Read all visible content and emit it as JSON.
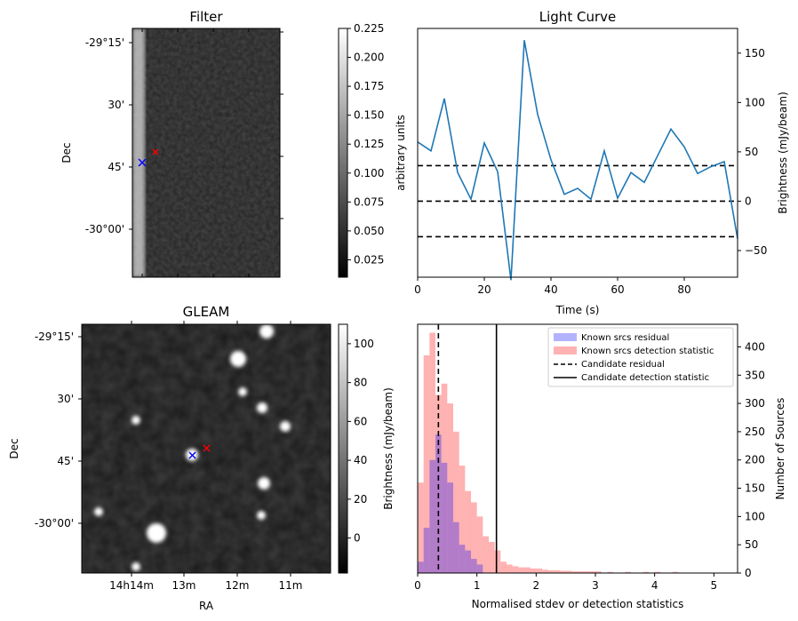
{
  "chart_data": [
    {
      "type": "heatmap",
      "title": "Filter",
      "ylabel": "Dec",
      "y_ticks": [
        "-29°15'",
        "30'",
        "45'",
        "-30°00'"
      ],
      "colorbar": {
        "label": "arbitrary units",
        "range": [
          0.01,
          0.225
        ],
        "ticks": [
          "0.225",
          "0.200",
          "0.175",
          "0.150",
          "0.125",
          "0.100",
          "0.075",
          "0.050",
          "0.025"
        ],
        "colormap": "gray"
      },
      "markers": [
        {
          "symbol": "x",
          "color": "#0000ff"
        },
        {
          "symbol": "x",
          "color": "#ff0000"
        }
      ]
    },
    {
      "type": "line",
      "title": "Light Curve",
      "xlabel": "Time (s)",
      "y2label": "Brightness (mJy/beam)",
      "xlim": [
        0,
        96
      ],
      "ylim": [
        -77,
        175
      ],
      "x_ticks": [
        "0",
        "20",
        "40",
        "60",
        "80"
      ],
      "y_ticks": [
        "150",
        "100",
        "50",
        "0",
        "−50"
      ],
      "line_color": "#1f77b4",
      "series": [
        {
          "x": [
            0,
            4,
            8,
            12,
            16,
            20,
            24,
            28,
            32,
            36,
            40,
            44,
            48,
            52,
            56,
            60,
            64,
            68,
            72,
            76,
            80,
            84,
            88,
            92,
            96
          ],
          "values": [
            60,
            51,
            104,
            29,
            2,
            59,
            30,
            -80,
            163,
            88,
            42,
            7,
            13,
            2,
            51,
            3,
            29,
            19,
            46,
            73,
            55,
            28,
            35,
            40,
            -38
          ]
        }
      ],
      "hlines": [
        36,
        0,
        -36
      ]
    },
    {
      "type": "heatmap",
      "title": "GLEAM",
      "xlabel": "RA",
      "ylabel": "Dec",
      "x_ticks": [
        "14h14m",
        "13m",
        "12m",
        "11m"
      ],
      "y_ticks": [
        "-29°15'",
        "30'",
        "45'",
        "-30°00'"
      ],
      "colorbar": {
        "label": "Brightness (mJy/beam)",
        "range": [
          -18,
          110
        ],
        "ticks": [
          "100",
          "80",
          "60",
          "40",
          "20",
          "0"
        ],
        "colormap": "gray"
      },
      "markers": [
        {
          "symbol": "x",
          "color": "#0000ff"
        },
        {
          "symbol": "x",
          "color": "#ff0000"
        }
      ]
    },
    {
      "type": "bar",
      "xlabel": "Normalised stdev or detection statistics",
      "y2label": "Number of Sources",
      "xlim": [
        0,
        5.4
      ],
      "ylim": [
        0,
        440
      ],
      "x_ticks": [
        "0",
        "1",
        "2",
        "3",
        "4",
        "5"
      ],
      "y_ticks": [
        "400",
        "350",
        "300",
        "250",
        "200",
        "150",
        "100",
        "50",
        "0"
      ],
      "legend_position": "top-right",
      "bin_width": 0.1,
      "series": [
        {
          "name": "Known srcs residual",
          "color": "#0000ff",
          "x": [
            0,
            0.1,
            0.2,
            0.3,
            0.4,
            0.5,
            0.6,
            0.7,
            0.8,
            0.9,
            1.0
          ],
          "values": [
            20,
            80,
            200,
            245,
            195,
            160,
            90,
            50,
            40,
            25,
            15
          ]
        },
        {
          "name": "Known srcs detection statistic",
          "color": "#ff0000",
          "x": [
            0,
            0.1,
            0.2,
            0.3,
            0.4,
            0.5,
            0.6,
            0.7,
            0.8,
            0.9,
            1.0,
            1.1,
            1.2,
            1.3,
            1.4,
            1.5,
            1.6,
            1.7,
            1.8,
            1.9,
            2.0,
            2.1,
            2.2,
            2.3,
            2.4,
            2.5,
            2.6,
            2.7,
            2.8,
            2.9,
            3.0,
            3.2,
            3.5,
            3.8,
            4.0,
            4.3
          ],
          "values": [
            160,
            385,
            425,
            315,
            335,
            300,
            250,
            190,
            145,
            125,
            100,
            65,
            55,
            40,
            20,
            15,
            12,
            10,
            10,
            8,
            8,
            6,
            5,
            5,
            4,
            4,
            3,
            3,
            3,
            3,
            3,
            2,
            2,
            2,
            2,
            2
          ]
        }
      ],
      "vlines": [
        {
          "name": "Candidate residual",
          "x": 0.35,
          "style": "dashed"
        },
        {
          "name": "Candidate detection statistic",
          "x": 1.33,
          "style": "solid"
        }
      ]
    }
  ]
}
